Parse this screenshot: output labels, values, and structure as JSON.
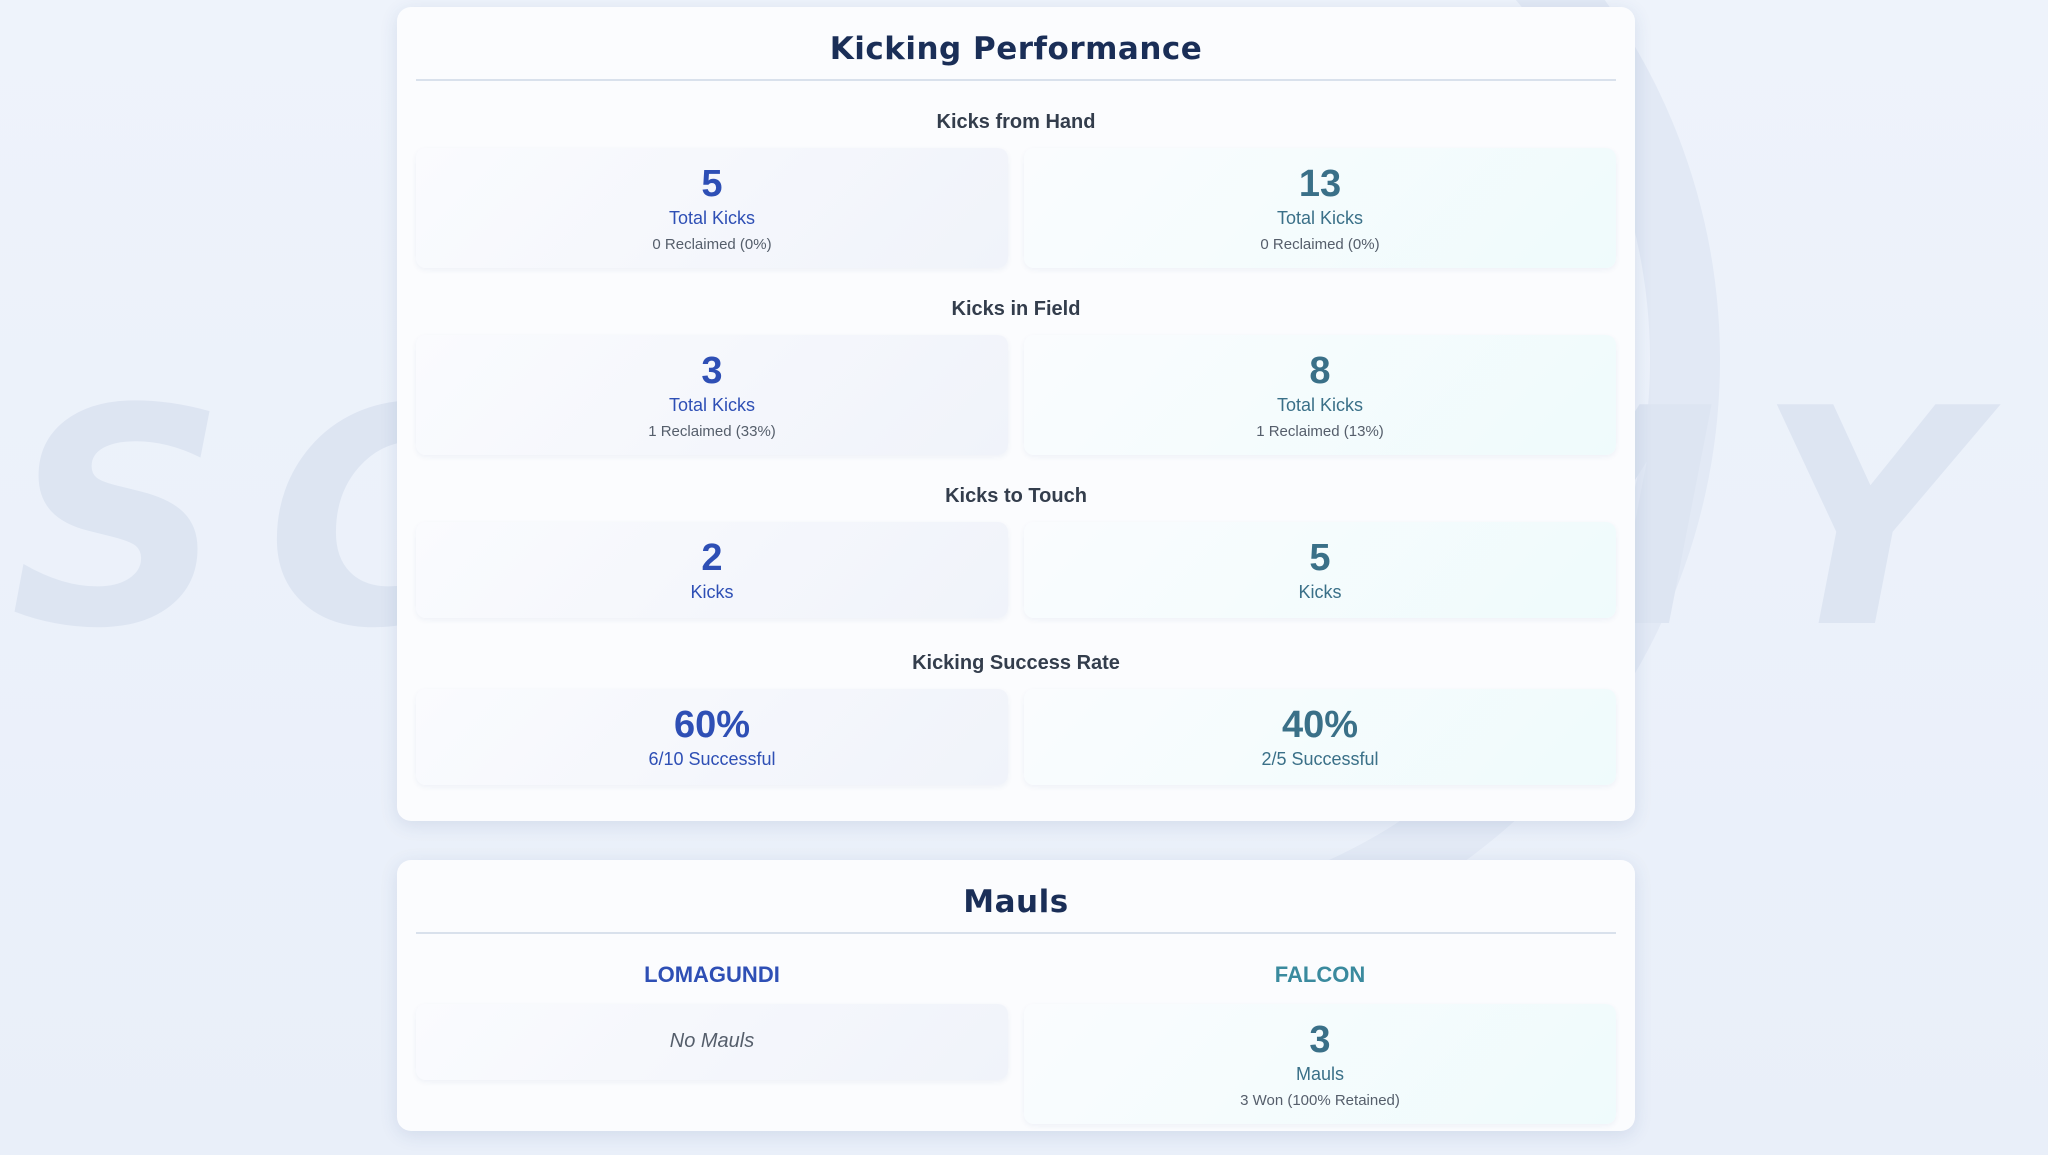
{
  "watermark": "SCRUMMY",
  "kicking": {
    "title": "Kicking Performance",
    "sections": [
      {
        "title": "Kicks from Hand",
        "home": {
          "value": "5",
          "label": "Total Kicks",
          "sub": "0 Reclaimed (0%)"
        },
        "away": {
          "value": "13",
          "label": "Total Kicks",
          "sub": "0 Reclaimed (0%)"
        }
      },
      {
        "title": "Kicks in Field",
        "home": {
          "value": "3",
          "label": "Total Kicks",
          "sub": "1 Reclaimed (33%)"
        },
        "away": {
          "value": "8",
          "label": "Total Kicks",
          "sub": "1 Reclaimed (13%)"
        }
      },
      {
        "title": "Kicks to Touch",
        "home": {
          "value": "2",
          "label": "Kicks"
        },
        "away": {
          "value": "5",
          "label": "Kicks"
        }
      },
      {
        "title": "Kicking Success Rate",
        "home": {
          "value": "60%",
          "label": "6/10 Successful"
        },
        "away": {
          "value": "40%",
          "label": "2/5 Successful"
        }
      }
    ]
  },
  "mauls": {
    "title": "Mauls",
    "home": {
      "team": "LOMAGUNDI",
      "empty": "No Mauls"
    },
    "away": {
      "team": "FALCON",
      "value": "3",
      "label": "Mauls",
      "sub": "3 Won (100% Retained)"
    }
  },
  "colors": {
    "home": "#2e4fb5",
    "away": "#3a7088",
    "title": "#1a2e57"
  }
}
